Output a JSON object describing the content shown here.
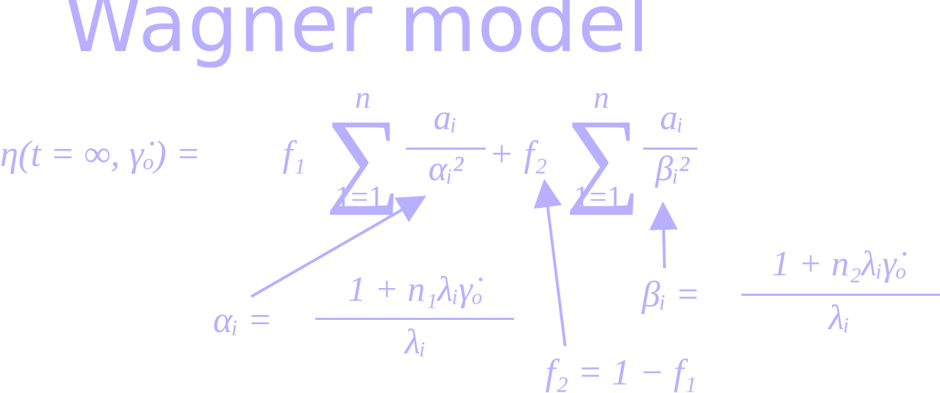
{
  "title": "Wagner model",
  "main_equation": {
    "lhs": "η(t = ∞, γ̇ₒ) =",
    "f1": "f₁",
    "plus": "+",
    "f2": "f₂",
    "sum_upper": "n",
    "sum_lower": "1=1",
    "term1_num": "aᵢ",
    "term1_den": "αᵢ²",
    "term2_num": "aᵢ",
    "term2_den": "βᵢ²"
  },
  "alpha_def": {
    "lhs": "αᵢ =",
    "num": "1 + n₁λᵢγ̇ₒ",
    "den": "λᵢ"
  },
  "beta_def": {
    "lhs": "βᵢ =",
    "num": "1 + n₂λᵢγ̇ₒ",
    "den": "λᵢ"
  },
  "f2_def": "f₂ = 1 − f₁",
  "colors": {
    "ink": "#b8b0ff"
  }
}
